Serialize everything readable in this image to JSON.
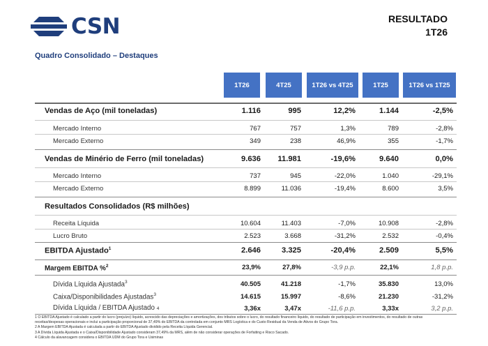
{
  "header": {
    "logo_text": "CSN",
    "report_line1": "RESULTADO",
    "report_line2": "1T26",
    "subtitle": "Quadro Consolidado – Destaques"
  },
  "columns": [
    "1T26",
    "4T25",
    "1T26 vs 4T25",
    "1T25",
    "1T26 vs 1T25"
  ],
  "rows": [
    {
      "label": "Vendas de Aço (mil toneladas)",
      "values": [
        "1.116",
        "995",
        "12,2%",
        "1.144",
        "-2,5%"
      ]
    },
    {
      "label": "Mercado Interno",
      "values": [
        "767",
        "757",
        "1,3%",
        "789",
        "-2,8%"
      ]
    },
    {
      "label": "Mercado Externo",
      "values": [
        "349",
        "238",
        "46,9%",
        "355",
        "-1,7%"
      ]
    },
    {
      "label": "Vendas de Minério de Ferro (mil toneladas)",
      "values": [
        "9.636",
        "11.981",
        "-19,6%",
        "9.640",
        "0,0%"
      ]
    },
    {
      "label": "Mercado Interno",
      "values": [
        "737",
        "945",
        "-22,0%",
        "1.040",
        "-29,1%"
      ]
    },
    {
      "label": "Mercado Externo",
      "values": [
        "8.899",
        "11.036",
        "-19,4%",
        "8.600",
        "3,5%"
      ]
    },
    {
      "label": "Resultados Consolidados (R$ milhões)"
    },
    {
      "label": "Receita Líquida",
      "values": [
        "10.604",
        "11.403",
        "-7,0%",
        "10.908",
        "-2,8%"
      ]
    },
    {
      "label": "Lucro Bruto",
      "values": [
        "2.523",
        "3.668",
        "-31,2%",
        "2.532",
        "-0,4%"
      ]
    },
    {
      "label": "EBITDA Ajustado",
      "sup": "1",
      "values": [
        "2.646",
        "3.325",
        "-20,4%",
        "2.509",
        "5,5%"
      ]
    },
    {
      "label": "Margem EBITDA %",
      "sup": "2",
      "values": [
        "23,9%",
        "27,8%",
        "-3,9 p.p.",
        "22,1%",
        "1,8 p.p."
      ]
    },
    {
      "label": "Dívida Líquida Ajustada",
      "sup": "3",
      "values": [
        "40.505",
        "41.218",
        "-1,7%",
        "35.830",
        "13,0%"
      ]
    },
    {
      "label": "Caixa/Disponibilidades Ajustadas",
      "sup": "3",
      "values": [
        "14.615",
        "15.997",
        "-8,6%",
        "21.230",
        "-31,2%"
      ]
    },
    {
      "label": "Dívida Líquida / EBITDA Ajustado",
      "sup": "4",
      "values": [
        "3,36x",
        "3,47x",
        "-11,6 p.p.",
        "3,33x",
        "3,2 p.p."
      ]
    }
  ],
  "footnotes": [
    "1 O EBITDA Ajustado é calculado a partir do lucro (prejuízo) líquido, acrescido das depreciações e amortizações, dos tributos sobre o lucro, do resultado financeiro líquido, do resultado de participação em investimentos, do resultado de outras",
    "receitas/despesas operacionais e inclui a participação proporcional de 37,49% do EBITDA da controlada em conjunto MRS Logística e do Custo Residual da Venda de Ativos do Grupo Tora.",
    "2 A Margem EBITDA Ajustada é calculada a partir do EBITDA Ajustado dividido pela Receita Líquida Gerencial.",
    "3 A Dívida Líquida Ajustada e o Caixa/Disponibilidade Ajustado consideram 37,49% da MRS, além de não considerar operações de Forfaiting e Risco Sacado.",
    "4 Cálculo da alavancagem considera o EBITDA UDM do Grupo Tora e Usiminas"
  ]
}
